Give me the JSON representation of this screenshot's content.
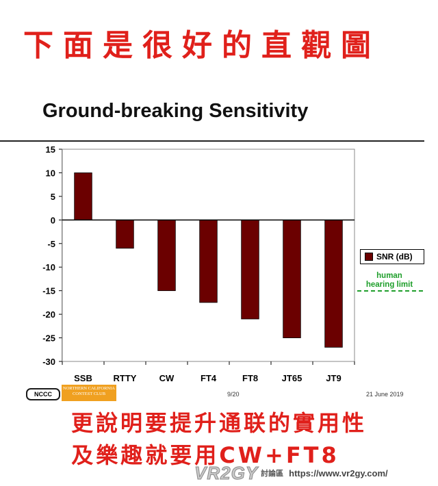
{
  "top_caption": "下面是很好的直觀圖",
  "slide_title": "Ground-breaking Sensitivity",
  "chart_data": {
    "type": "bar",
    "categories": [
      "SSB",
      "RTTY",
      "CW",
      "FT4",
      "FT8",
      "JT65",
      "JT9"
    ],
    "series": [
      {
        "name": "SNR (dB)",
        "values": [
          10,
          -6,
          -15,
          -17.5,
          -21,
          -25,
          -27
        ]
      }
    ],
    "ylim": [
      -30,
      15
    ],
    "yticks": [
      15,
      10,
      5,
      0,
      -5,
      -10,
      -15,
      -20,
      -25,
      -30
    ],
    "xlabel": "",
    "ylabel": "",
    "grid": false,
    "legend": "right",
    "colors": {
      "bar": "#6b0000",
      "plot_bg": "#ffffff",
      "reference": "#1e9e2a"
    },
    "annotation": {
      "text": "human hearing limit",
      "value": -15
    }
  },
  "footer": {
    "logo_short": "NCCC",
    "logo_long": "NORTHERN CALIFORNIA CONTEST CLUB",
    "slide_number": "9/20",
    "date": "21 June 2019"
  },
  "bottom_caption_line1": "更說明要提升通联的實用性",
  "bottom_caption_line2": "及樂趣就要用CW+FT8",
  "watermark": {
    "logo": "VR2GY",
    "forum": "討論區",
    "url": "https://www.vr2gy.com/"
  }
}
